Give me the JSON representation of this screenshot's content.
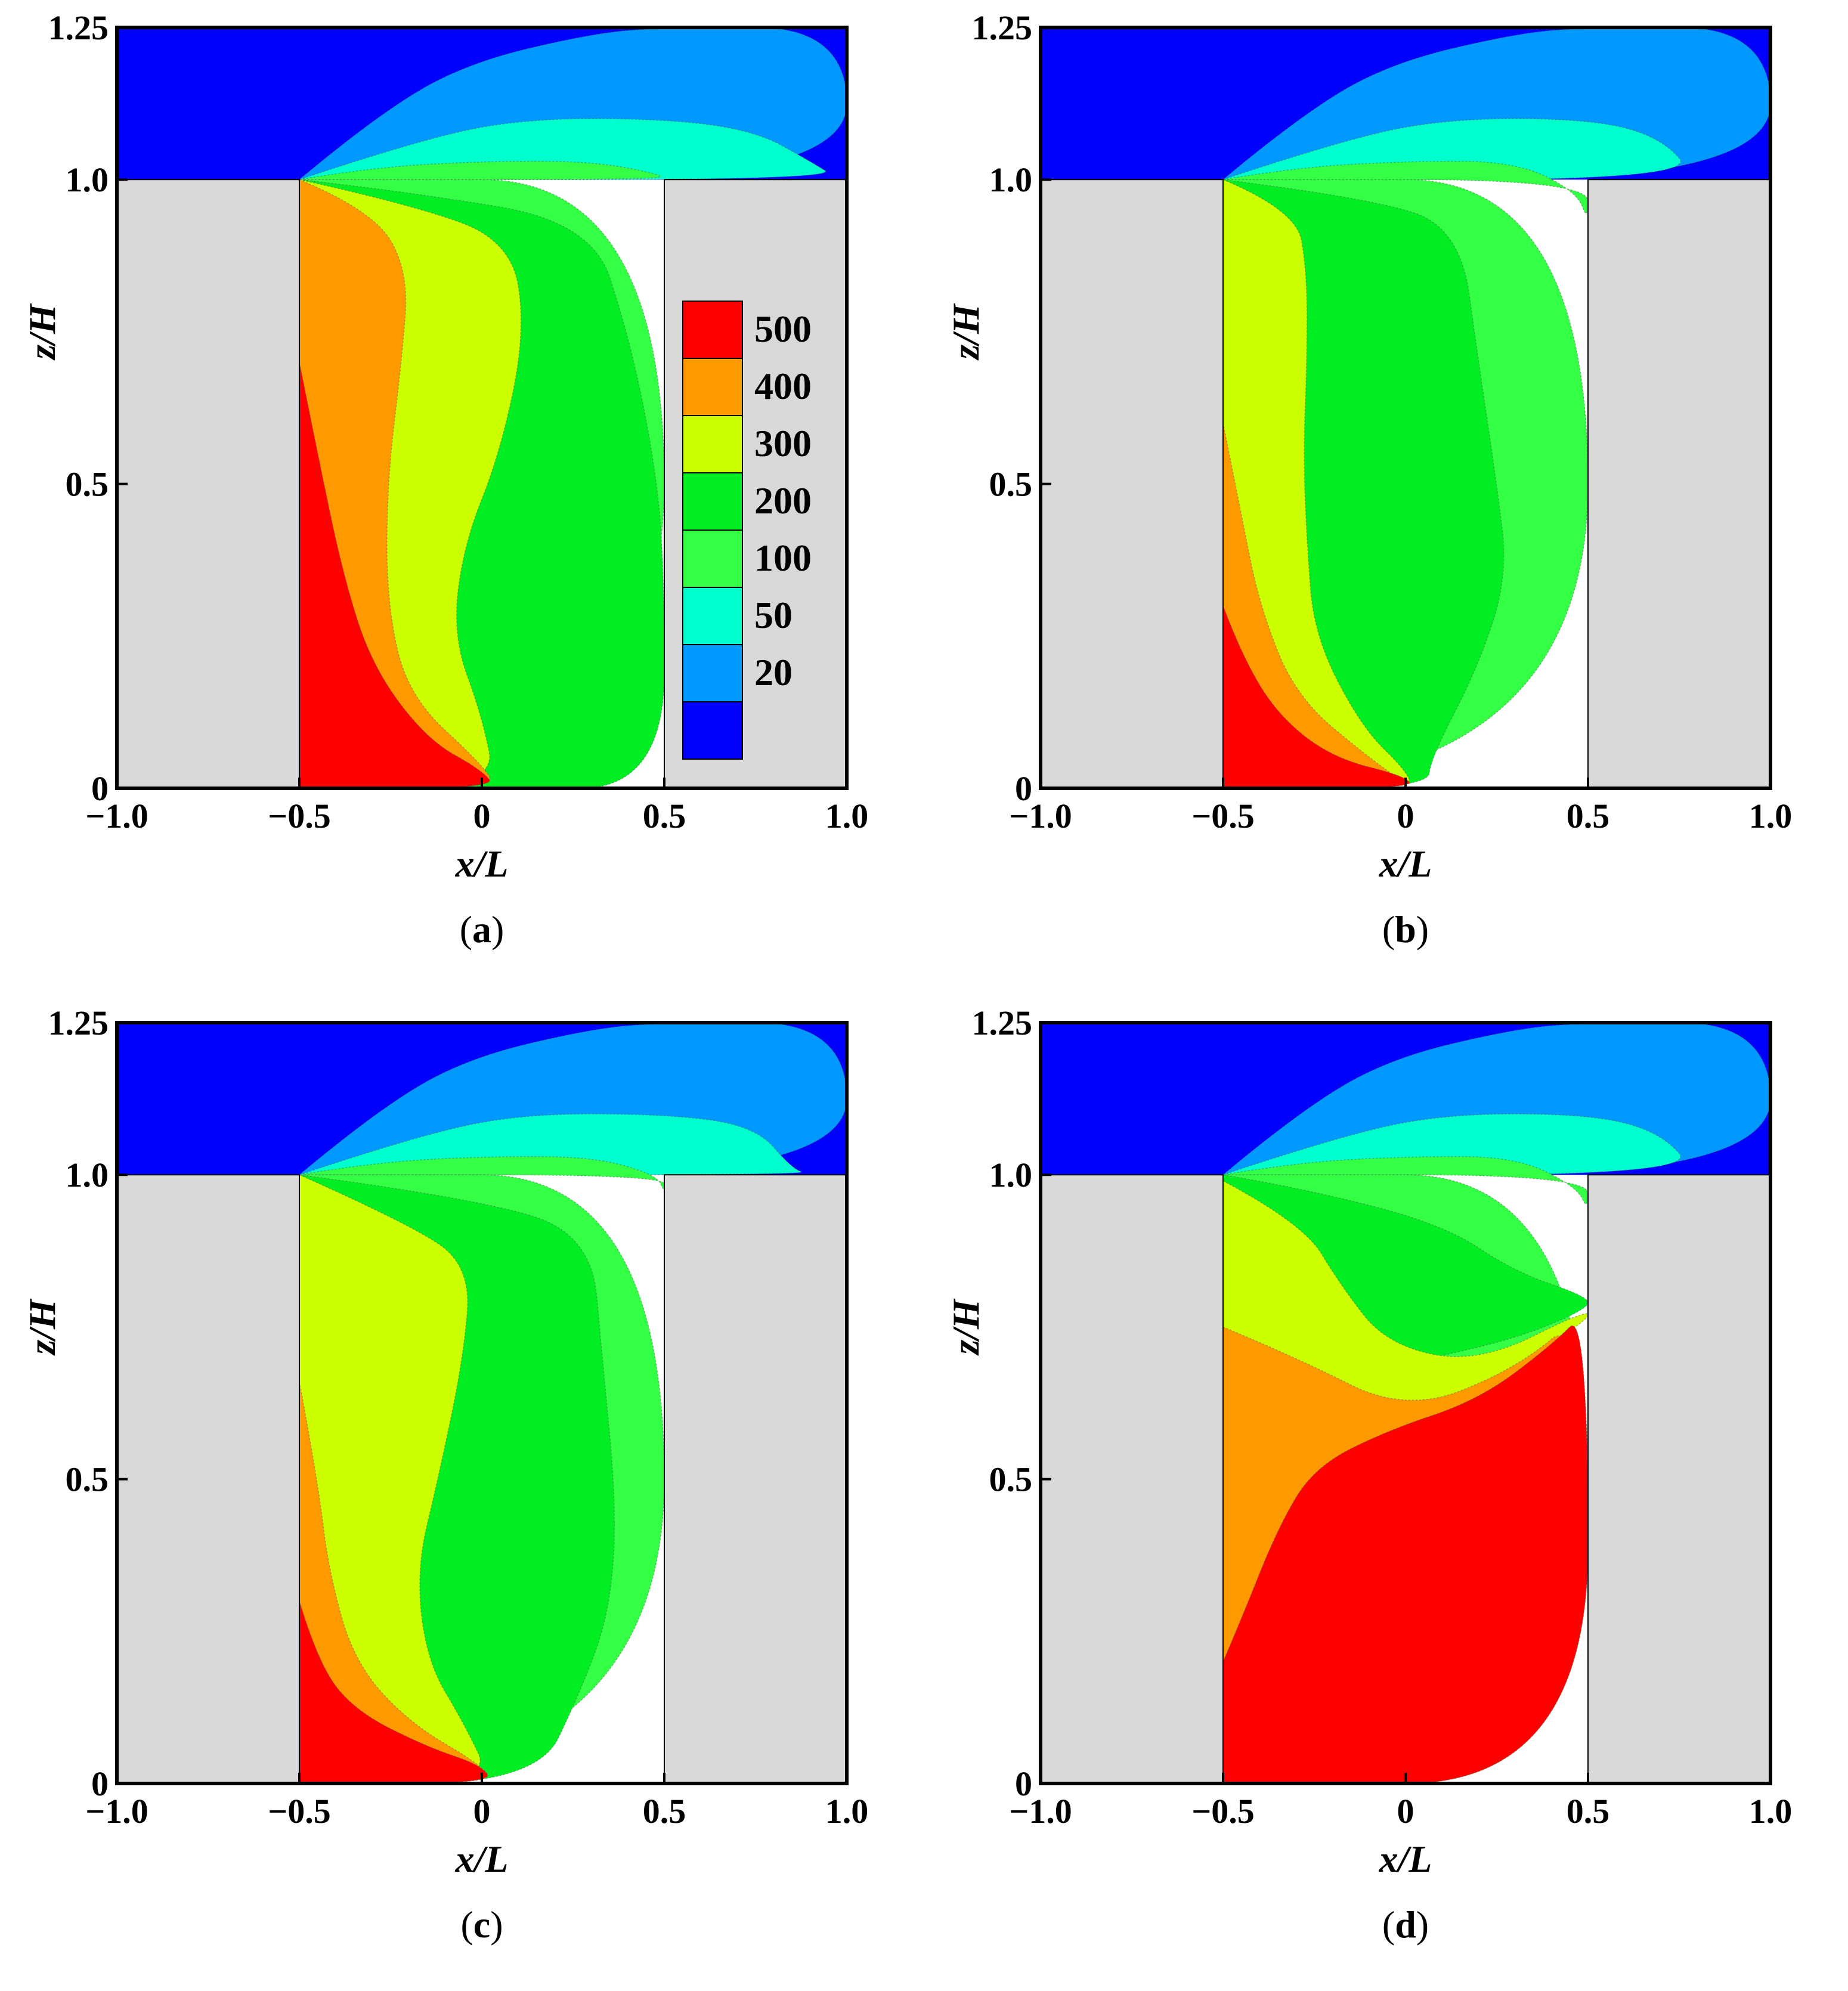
{
  "chart_data": {
    "type": "heatmap",
    "subtype": "filled-contour",
    "xlabel": "x/L",
    "ylabel": "z/H",
    "xlim": [
      -1.0,
      1.0
    ],
    "ylim": [
      0,
      1.25
    ],
    "x_ticks": [
      -1.0,
      -0.5,
      0,
      0.5,
      1.0
    ],
    "y_ticks": [
      0,
      0.5,
      1.0,
      1.25
    ],
    "legend": {
      "placement": "inside panel (a), right of center",
      "levels": [
        {
          "label": "500",
          "color": "#ff0000"
        },
        {
          "label": "400",
          "color": "#ff9900"
        },
        {
          "label": "300",
          "color": "#ccff00"
        },
        {
          "label": "200",
          "color": "#00ee22"
        },
        {
          "label": "100",
          "color": "#33ff44"
        },
        {
          "label": "50",
          "color": "#00ffcc"
        },
        {
          "label": "20",
          "color": "#0099ff"
        },
        {
          "label": "",
          "color": "#0000ff"
        }
      ]
    },
    "building_color": "#d9d9d9",
    "panels": [
      {
        "label": "a",
        "x_tick_labels": [
          "−1.0",
          "−0.5",
          "0",
          "0.5",
          "1.0"
        ],
        "y_tick_labels": [
          "0",
          "0.5",
          "1.0",
          "1.25"
        ],
        "has_legend": true
      },
      {
        "label": "b",
        "x_tick_labels": [
          "−1.0",
          "−0.5",
          "0",
          "0.5",
          "1.0"
        ],
        "y_tick_labels": [
          "0",
          "0.5",
          "1.0",
          "1.25"
        ],
        "has_legend": false
      },
      {
        "label": "c",
        "x_tick_labels": [
          "−1.0",
          "−0.5",
          "0",
          "0.5",
          "1.0"
        ],
        "y_tick_labels": [
          "0",
          "0.5",
          "1.0",
          "1.25"
        ],
        "has_legend": false
      },
      {
        "label": "d",
        "x_tick_labels": [
          "−1.0",
          "−0.5",
          "0",
          "0.5",
          "1.0"
        ],
        "y_tick_labels": [
          "0",
          "0.5",
          "1.0",
          "1.25"
        ],
        "has_legend": false
      }
    ]
  }
}
